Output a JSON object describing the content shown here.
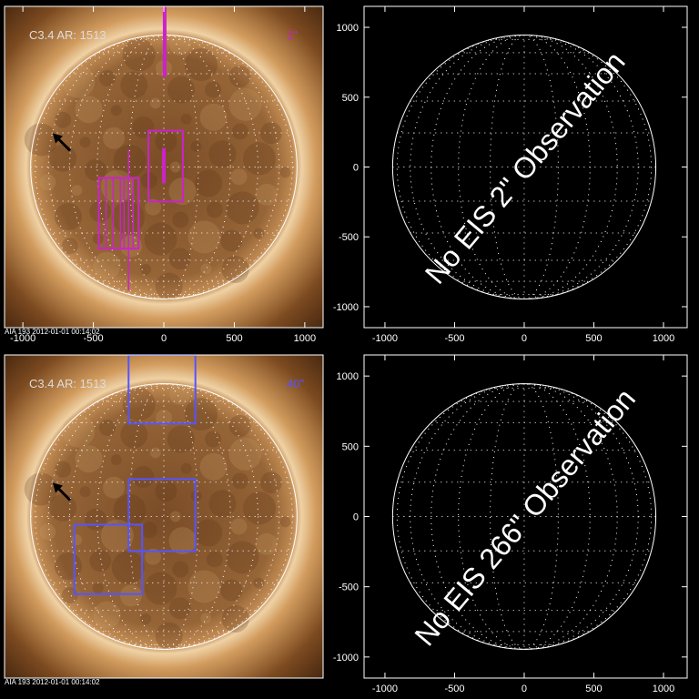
{
  "chart_data": [
    {
      "type": "image",
      "title": "C3.4 AR: 1513",
      "label": "1\"",
      "label_color": "#cc22cc",
      "footer": "AIA 193   2012-01-01 00:14:02",
      "xlim": [
        -1130,
        1130
      ],
      "ylim": [
        -1150,
        1150
      ],
      "xticks": [
        -1000,
        -500,
        0,
        500,
        1000
      ],
      "boxes": [
        {
          "x": [
            -109,
            135
          ],
          "y": [
            -247,
            260
          ]
        },
        {
          "x": [
            -462,
            -179
          ],
          "y": [
            -584,
            -78
          ]
        }
      ],
      "lines": [
        {
          "x": 6,
          "y": [
            643,
            1150
          ],
          "thick": true
        },
        {
          "x": 0,
          "y": [
            -117,
            136
          ],
          "thick": true
        },
        {
          "x": -410,
          "y": [
            -584,
            -78
          ],
          "thick": false
        },
        {
          "x": -359,
          "y": [
            -584,
            -78
          ],
          "thick": false
        },
        {
          "x": -308,
          "y": [
            -584,
            -78
          ],
          "thick": false
        },
        {
          "x": -282,
          "y": [
            -584,
            -78
          ],
          "thick": false
        },
        {
          "x": -218,
          "y": [
            -584,
            -78
          ],
          "thick": false
        },
        {
          "x": -250,
          "y": [
            -883,
            123
          ],
          "thick": false
        }
      ]
    },
    {
      "type": "empty",
      "annotation": "No EIS 2\" Observation",
      "xlim": [
        -1150,
        1170
      ],
      "ylim": [
        -1150,
        1150
      ],
      "xticks": [
        -1000,
        -500,
        0,
        500,
        1000
      ],
      "yticks": [
        -1000,
        -500,
        0,
        500,
        1000
      ]
    },
    {
      "type": "image",
      "title": "C3.4 AR: 1513",
      "label": "40\"",
      "label_color": "#5555ff",
      "footer": "AIA 193   2012-01-01 00:14:02",
      "xlim": [
        -1130,
        1130
      ],
      "ylim": [
        -1150,
        1150
      ],
      "boxes": [
        {
          "x": [
            -250,
            224
          ],
          "y": [
            662,
            1150
          ]
        },
        {
          "x": [
            -250,
            224
          ],
          "y": [
            -247,
            266
          ]
        },
        {
          "x": [
            -635,
            -154
          ],
          "y": [
            -552,
            -58
          ]
        }
      ],
      "lines": []
    },
    {
      "type": "empty",
      "annotation": "No EIS 266\" Observation",
      "xlim": [
        -1150,
        1170
      ],
      "ylim": [
        -1150,
        1150
      ],
      "xticks": [
        -1000,
        -500,
        0,
        500,
        1000
      ],
      "yticks": [
        -1000,
        -500,
        0,
        500,
        1000
      ]
    }
  ]
}
